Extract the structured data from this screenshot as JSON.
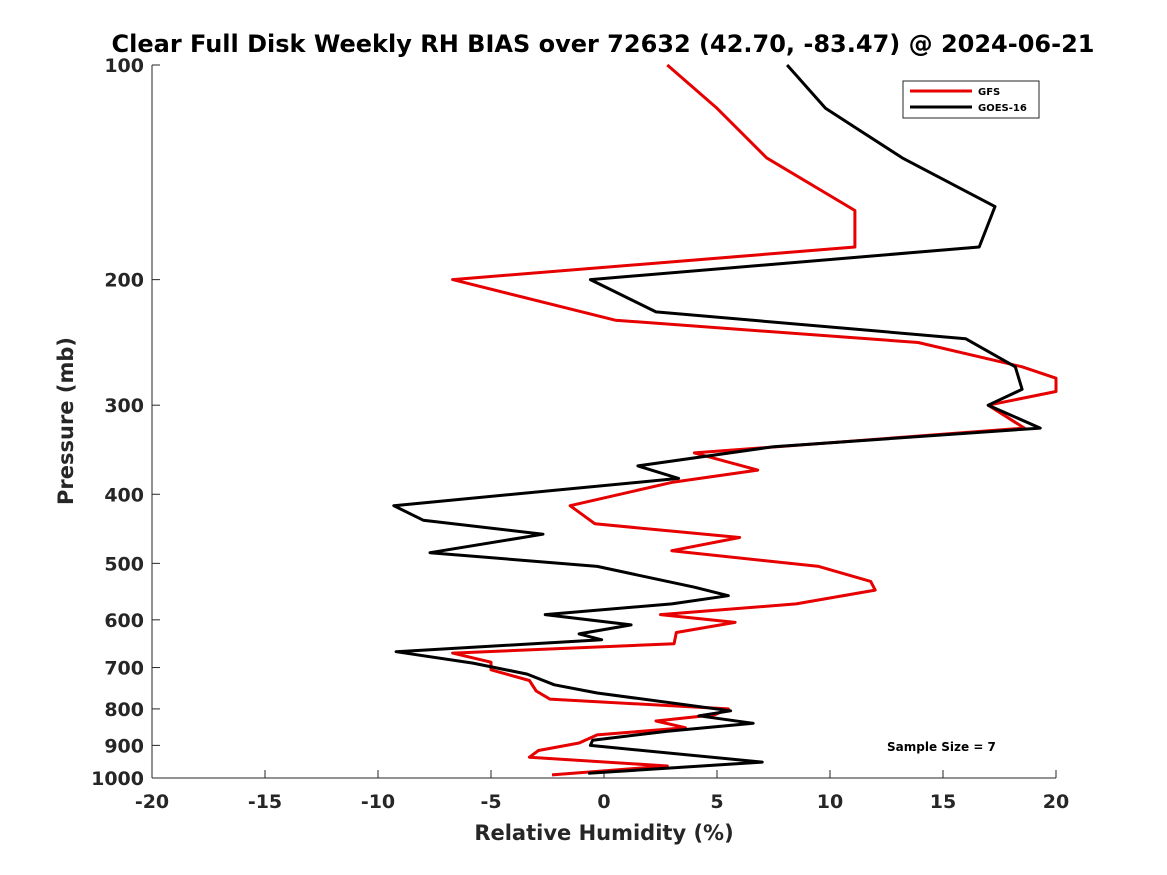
{
  "chart_data": {
    "type": "line",
    "title": "Clear Full Disk Weekly RH BIAS over 72632 (42.70, -83.47) @ 2024-06-21",
    "xlabel": "Relative Humidity (%)",
    "ylabel": "Pressure (mb)",
    "xlim": [
      -20,
      20
    ],
    "ylim": [
      100,
      1000
    ],
    "yscale": "log",
    "yreversed": true,
    "grid": false,
    "legend_position": "top-right",
    "xticks": [
      -20,
      -15,
      -10,
      -5,
      0,
      5,
      10,
      15,
      20
    ],
    "xtick_labels": [
      "-20",
      "-15",
      "-10",
      "-5",
      "0",
      "5",
      "10",
      "15",
      "20"
    ],
    "yticks": [
      100,
      200,
      300,
      400,
      500,
      600,
      700,
      800,
      900,
      1000
    ],
    "ytick_labels": [
      "100",
      "200",
      "300",
      "400",
      "500",
      "600",
      "700",
      "800",
      "900",
      "1000"
    ],
    "series": [
      {
        "name": "GFS",
        "color": "#e60000",
        "points": [
          [
            2.8,
            100
          ],
          [
            5.0,
            115
          ],
          [
            7.2,
            135
          ],
          [
            11.1,
            160
          ],
          [
            11.1,
            180
          ],
          [
            -6.7,
            200
          ],
          [
            0.5,
            228
          ],
          [
            13.9,
            245
          ],
          [
            18.5,
            265
          ],
          [
            20,
            275
          ],
          [
            20,
            287
          ],
          [
            17.0,
            300
          ],
          [
            18.6,
            323
          ],
          [
            4.0,
            350
          ],
          [
            6.8,
            370
          ],
          [
            3.0,
            385
          ],
          [
            -1.5,
            415
          ],
          [
            -0.4,
            440
          ],
          [
            6.0,
            460
          ],
          [
            3.0,
            480
          ],
          [
            9.5,
            505
          ],
          [
            11.8,
            530
          ],
          [
            12.0,
            545
          ],
          [
            8.5,
            570
          ],
          [
            2.5,
            590
          ],
          [
            5.8,
            605
          ],
          [
            3.2,
            625
          ],
          [
            3.1,
            648
          ],
          [
            -6.7,
            668
          ],
          [
            -5.0,
            688
          ],
          [
            -5.0,
            705
          ],
          [
            -3.3,
            730
          ],
          [
            -3.0,
            755
          ],
          [
            -2.4,
            775
          ],
          [
            5.5,
            800
          ],
          [
            4.9,
            815
          ],
          [
            2.3,
            832
          ],
          [
            3.6,
            850
          ],
          [
            -0.3,
            870
          ],
          [
            -1.1,
            893
          ],
          [
            -2.9,
            915
          ],
          [
            -3.3,
            935
          ],
          [
            2.8,
            962
          ],
          [
            -2.3,
            990
          ]
        ]
      },
      {
        "name": "GOES-16",
        "color": "#000000",
        "points": [
          [
            8.1,
            100
          ],
          [
            9.8,
            115
          ],
          [
            13.2,
            135
          ],
          [
            17.3,
            158
          ],
          [
            16.6,
            180
          ],
          [
            -0.6,
            200
          ],
          [
            2.3,
            222
          ],
          [
            16.0,
            242
          ],
          [
            18.2,
            265
          ],
          [
            18.5,
            285
          ],
          [
            17.0,
            300
          ],
          [
            19.3,
            323
          ],
          [
            7.5,
            343
          ],
          [
            1.5,
            365
          ],
          [
            3.3,
            380
          ],
          [
            -9.3,
            415
          ],
          [
            -8.0,
            435
          ],
          [
            -2.7,
            455
          ],
          [
            -7.7,
            483
          ],
          [
            -0.3,
            505
          ],
          [
            4.0,
            540
          ],
          [
            5.5,
            555
          ],
          [
            3.0,
            570
          ],
          [
            -2.6,
            590
          ],
          [
            1.2,
            610
          ],
          [
            -1.1,
            628
          ],
          [
            -0.1,
            640
          ],
          [
            -9.2,
            665
          ],
          [
            -5.8,
            690
          ],
          [
            -3.4,
            715
          ],
          [
            -2.2,
            740
          ],
          [
            -0.3,
            760
          ],
          [
            5.6,
            805
          ],
          [
            4.2,
            818
          ],
          [
            6.6,
            838
          ],
          [
            2.8,
            860
          ],
          [
            -0.5,
            885
          ],
          [
            -0.6,
            900
          ],
          [
            7.0,
            950
          ],
          [
            -0.7,
            985
          ]
        ]
      }
    ],
    "annotations": [
      {
        "text": "Sample Size = 7",
        "x": 16.5,
        "y": 900
      }
    ]
  }
}
